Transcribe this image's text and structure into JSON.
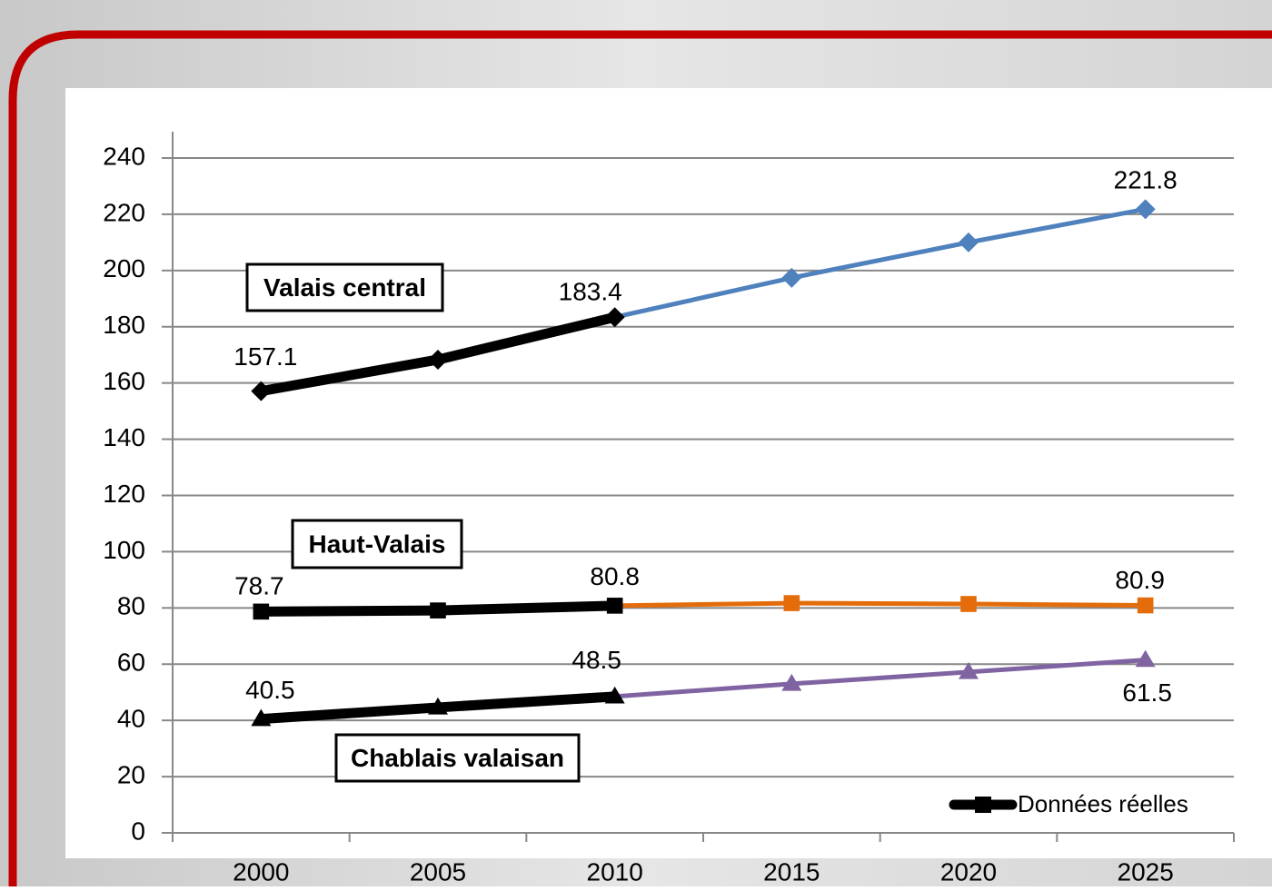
{
  "chart_data": {
    "type": "line",
    "categories": [
      "2000",
      "2005",
      "2010",
      "2015",
      "2020",
      "2025"
    ],
    "actual_end": "2010",
    "actual_name": "Données réelles",
    "actual_color": "#000000",
    "series": [
      {
        "name": "Valais central",
        "color": "#4f81bd",
        "marker": "diamond",
        "values": [
          157.1,
          168.3,
          183.4,
          197.4,
          210,
          221.8
        ],
        "value_labels": [
          "157.1",
          null,
          "183.4",
          null,
          null,
          "221.8"
        ]
      },
      {
        "name": "Haut-Valais",
        "color": "#e46c0a",
        "marker": "square",
        "values": [
          78.7,
          79.1,
          80.8,
          81.7,
          81.4,
          80.9
        ],
        "value_labels": [
          "78.7",
          null,
          "80.8",
          null,
          null,
          "80.9"
        ]
      },
      {
        "name": "Chablais valaisan",
        "color": "#8064a2",
        "marker": "triangle",
        "values": [
          40.5,
          44.6,
          48.5,
          53,
          57.2,
          61.5
        ],
        "value_labels": [
          "40.5",
          null,
          "48.5",
          null,
          null,
          "61.5"
        ]
      }
    ],
    "ylim": [
      0,
      240
    ],
    "yticks": [
      0,
      20,
      40,
      60,
      80,
      100,
      120,
      140,
      160,
      180,
      200,
      220,
      240
    ],
    "grid": true,
    "legend": "lower right"
  }
}
